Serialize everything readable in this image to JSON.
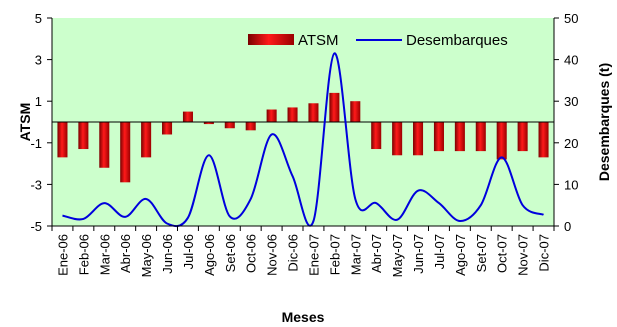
{
  "chart_data": {
    "type": "bar+line",
    "title": "",
    "xlabel": "Meses",
    "ylabel_left": "ATSM",
    "ylabel_right": "Desembarques (t)",
    "ylim_left": [
      -5,
      5
    ],
    "yticks_left": [
      -5,
      -3,
      -1,
      1,
      3,
      5
    ],
    "ylim_right": [
      0,
      50
    ],
    "yticks_right": [
      0,
      10,
      20,
      30,
      40,
      50
    ],
    "grid": false,
    "legend_position": "top-right",
    "plot_background": "#ccffcc",
    "categories": [
      "Ene-06",
      "Feb-06",
      "Mar-06",
      "Abr-06",
      "May-06",
      "Jun-06",
      "Jul-06",
      "Ago-06",
      "Set-06",
      "Oct-06",
      "Nov-06",
      "Dic-06",
      "Ene-07",
      "Feb-07",
      "Mar-07",
      "Abr-07",
      "May-07",
      "Jun-07",
      "Jul-07",
      "Ago-07",
      "Set-07",
      "Oct-07",
      "Nov-07",
      "Dic-07"
    ],
    "series": [
      {
        "name": "ATSM",
        "kind": "bar",
        "axis": "left",
        "color": "#e00000",
        "values": [
          -1.7,
          -1.3,
          -2.2,
          -2.9,
          -1.7,
          -0.6,
          0.5,
          -0.1,
          -0.3,
          -0.4,
          0.6,
          0.7,
          0.9,
          1.4,
          1.0,
          -1.3,
          -1.6,
          -1.6,
          -1.4,
          -1.4,
          -1.4,
          -1.8,
          -1.4,
          -1.7
        ]
      },
      {
        "name": "Desembarques",
        "kind": "line",
        "axis": "right",
        "color": "#0000dd",
        "values": [
          2.5,
          1.7,
          5.5,
          2.2,
          6.5,
          0.6,
          2.0,
          17.0,
          2.3,
          6.5,
          22.0,
          12.0,
          1.2,
          41.5,
          6.5,
          5.5,
          1.5,
          8.5,
          5.5,
          1.2,
          5.0,
          16.5,
          5.0,
          2.7
        ]
      }
    ]
  }
}
